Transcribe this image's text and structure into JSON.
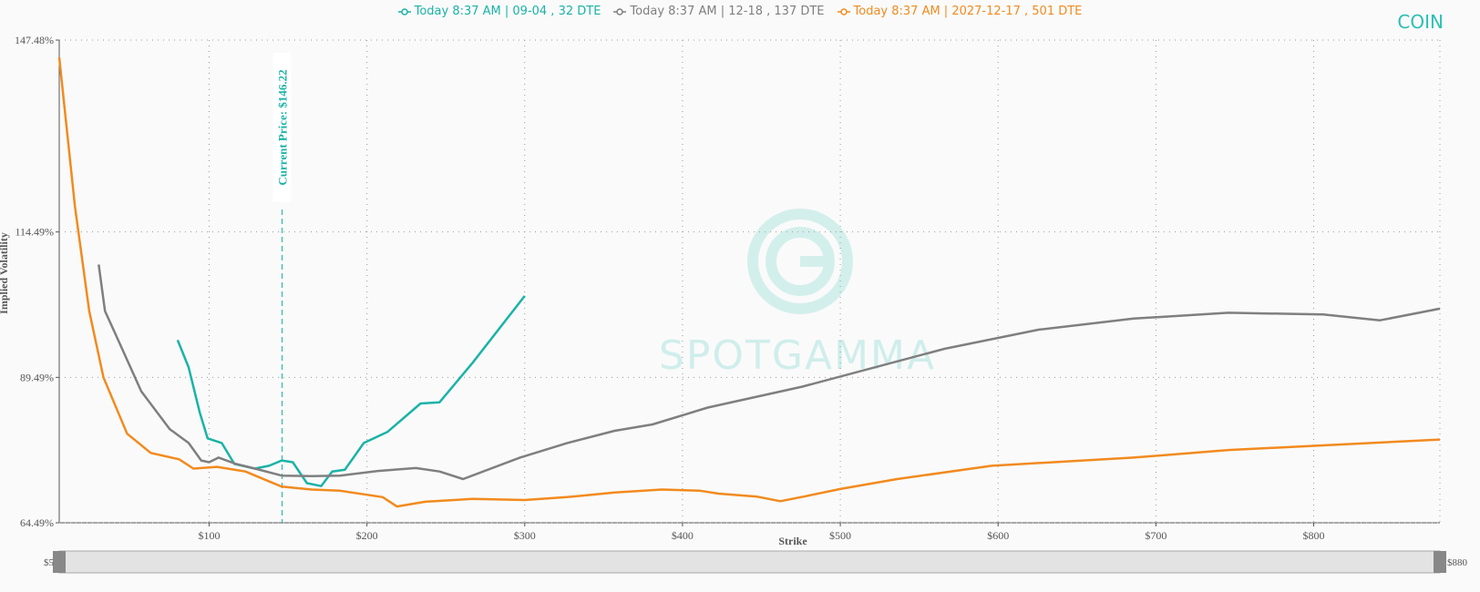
{
  "chart_data": {
    "type": "line",
    "symbol": "COIN",
    "watermark": "SPOTGAMMA",
    "x_label": "Strike",
    "y_label": "Implied Volatility",
    "current_price": {
      "value": 146.22,
      "label": "Current Price: $146.22"
    },
    "slider": {
      "min": {
        "value": 5,
        "label": "$5"
      },
      "max": {
        "value": 880,
        "label": "$880"
      }
    },
    "xlim": [
      5,
      880
    ],
    "ylim": [
      64.49,
      147.48
    ],
    "xticks": [
      {
        "value": 100,
        "label": "$100"
      },
      {
        "value": 200,
        "label": "$200"
      },
      {
        "value": 300,
        "label": "$300"
      },
      {
        "value": 400,
        "label": "$400"
      },
      {
        "value": 500,
        "label": "$500"
      },
      {
        "value": 600,
        "label": "$600"
      },
      {
        "value": 700,
        "label": "$700"
      },
      {
        "value": 800,
        "label": "$800"
      }
    ],
    "yticks": [
      {
        "value": 64.49,
        "label": "64.49%"
      },
      {
        "value": 89.49,
        "label": "89.49%"
      },
      {
        "value": 114.49,
        "label": "114.49%"
      },
      {
        "value": 147.48,
        "label": "147.48%"
      }
    ],
    "grid": true,
    "series": [
      {
        "name": "Today 8:37 AM | 09-04 , 32 DTE",
        "color": "#1ab3a6",
        "x": [
          80,
          87,
          94,
          99,
          108,
          116,
          129,
          138,
          146,
          153,
          162,
          171,
          178,
          186,
          198,
          213,
          234,
          246,
          267,
          300
        ],
        "values": [
          95.9,
          91.2,
          83.5,
          79.0,
          78.2,
          74.6,
          73.8,
          74.3,
          75.2,
          74.9,
          71.3,
          70.8,
          73.3,
          73.6,
          78.2,
          80.1,
          85.0,
          85.2,
          92.0,
          103.5
        ]
      },
      {
        "name": "Today 8:37 AM | 12-18 , 137 DTE",
        "color": "#7f7f7f",
        "x": [
          30,
          34,
          42,
          57,
          75,
          87,
          95,
          100,
          106,
          117,
          129,
          146,
          165,
          183,
          207,
          231,
          246,
          261,
          297,
          327,
          357,
          381,
          416,
          476,
          566,
          626,
          686,
          746,
          806,
          842,
          880
        ],
        "values": [
          108.9,
          100.9,
          96.1,
          87.1,
          80.6,
          78.2,
          75.2,
          74.9,
          75.7,
          74.6,
          73.8,
          72.6,
          72.5,
          72.6,
          73.4,
          73.9,
          73.3,
          72.0,
          75.7,
          78.2,
          80.3,
          81.4,
          84.3,
          87.9,
          94.4,
          97.7,
          99.6,
          100.6,
          100.3,
          99.3,
          101.3
        ]
      },
      {
        "name": "Today 8:37 AM | 2027-12-17 , 501 DTE",
        "color": "#f28a1e",
        "x": [
          5,
          15,
          24,
          33,
          48,
          63,
          81,
          90,
          105,
          123,
          146,
          165,
          183,
          210,
          219,
          237,
          267,
          300,
          327,
          357,
          387,
          411,
          423,
          447,
          462,
          477,
          500,
          536,
          596,
          686,
          746,
          806,
          880
        ],
        "values": [
          144.5,
          118.8,
          100.9,
          89.5,
          79.8,
          76.5,
          75.4,
          73.8,
          74.1,
          73.3,
          70.7,
          70.2,
          70.0,
          68.9,
          67.3,
          68.1,
          68.6,
          68.4,
          68.9,
          69.7,
          70.2,
          70.0,
          69.5,
          69.0,
          68.2,
          69.0,
          70.3,
          72.0,
          74.3,
          75.7,
          77.0,
          77.8,
          78.8
        ]
      }
    ]
  }
}
